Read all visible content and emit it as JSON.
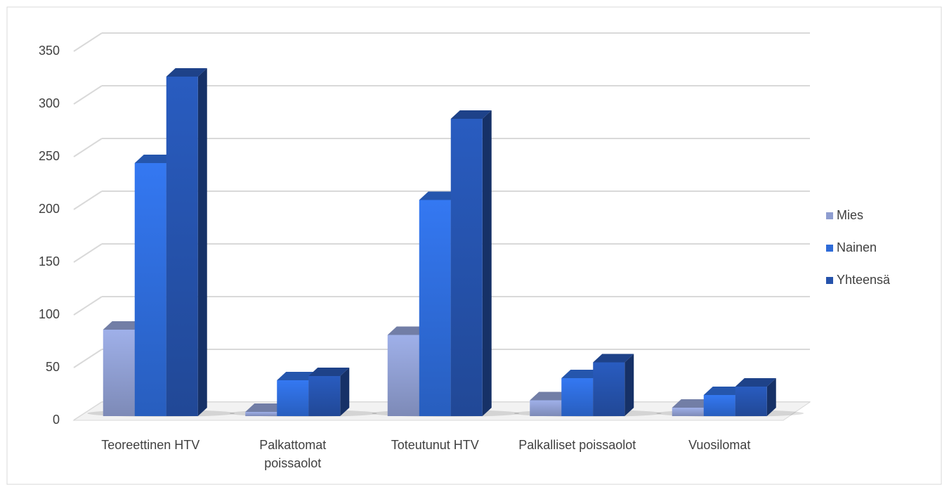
{
  "chart_data": {
    "type": "bar3d",
    "categories": [
      "Teoreettinen HTV",
      "Palkattomat poissaolot",
      "Toteutunut HTV",
      "Palkalliset poissaolot",
      "Vuosilomat"
    ],
    "series": [
      {
        "name": "Mies",
        "color": "#8e9dd0",
        "values": [
          82,
          4,
          77,
          15,
          8
        ]
      },
      {
        "name": "Nainen",
        "color": "#2e6bd8",
        "values": [
          240,
          34,
          205,
          36,
          20
        ]
      },
      {
        "name": "Yhteensä",
        "color": "#2552ab",
        "values": [
          322,
          38,
          282,
          51,
          28
        ]
      }
    ],
    "ylim": [
      0,
      350
    ],
    "yticks": [
      0,
      50,
      100,
      150,
      200,
      250,
      300,
      350
    ],
    "grid": true,
    "legend": "right"
  }
}
